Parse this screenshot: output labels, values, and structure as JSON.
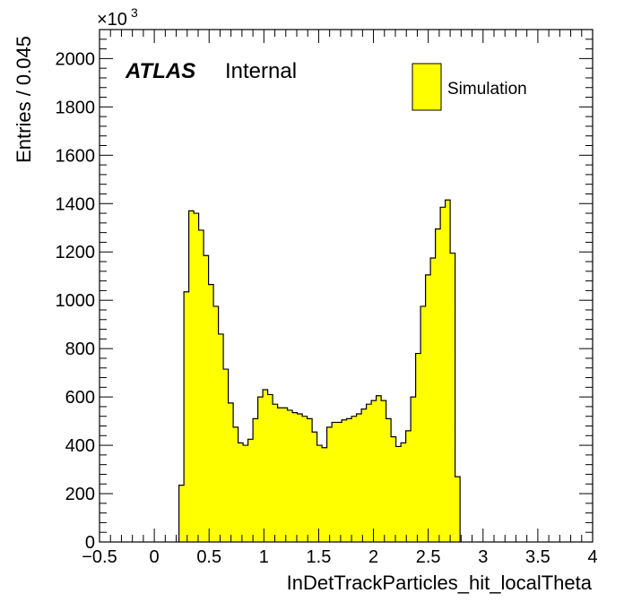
{
  "chart_data": {
    "type": "bar",
    "subtype": "histogram",
    "xlabel": "InDetTrackParticles_hit_localTheta",
    "ylabel": "Entries / 0.045",
    "y_multiplier_base": "×10",
    "y_multiplier_exp": "3",
    "xlim": [
      -0.5,
      4.0
    ],
    "ylim": [
      0,
      2120
    ],
    "bin_width": 0.045,
    "bin_start": 0.225,
    "x_ticks": [
      -0.5,
      0,
      0.5,
      1,
      1.5,
      2,
      2.5,
      3,
      3.5,
      4
    ],
    "x_tick_labels": [
      "−0.5",
      "0",
      "0.5",
      "1",
      "1.5",
      "2",
      "2.5",
      "3",
      "3.5",
      "4"
    ],
    "y_ticks": [
      0,
      200,
      400,
      600,
      800,
      1000,
      1200,
      1400,
      1600,
      1800,
      2000
    ],
    "y_tick_labels": [
      "0",
      "200",
      "400",
      "600",
      "800",
      "1000",
      "1200",
      "1400",
      "1600",
      "1800",
      "2000"
    ],
    "values": [
      235,
      1035,
      1370,
      1360,
      1290,
      1185,
      1065,
      975,
      860,
      715,
      575,
      475,
      410,
      400,
      425,
      510,
      600,
      630,
      610,
      570,
      555,
      555,
      545,
      535,
      530,
      520,
      510,
      455,
      400,
      390,
      475,
      495,
      495,
      505,
      510,
      520,
      530,
      550,
      570,
      585,
      605,
      585,
      510,
      435,
      395,
      410,
      460,
      600,
      780,
      975,
      1105,
      1175,
      1295,
      1385,
      1415,
      1195,
      270
    ],
    "fill_color": "#ffff00",
    "line_color": "#000000",
    "grid": false,
    "legend": {
      "placement": "top-right",
      "entries": [
        {
          "label": "Simulation",
          "color": "#ffff00"
        }
      ]
    },
    "annotations": {
      "atlas": "ATLAS",
      "status": "Internal"
    }
  }
}
